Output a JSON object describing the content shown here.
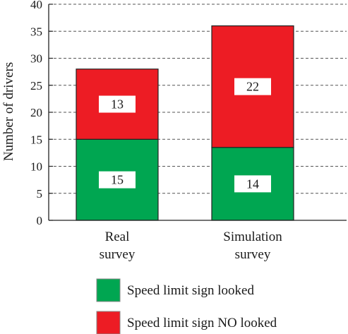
{
  "chart_data": {
    "type": "bar",
    "stacked": true,
    "categories": [
      [
        "Real",
        "survey"
      ],
      [
        "Simulation",
        "survey"
      ]
    ],
    "series": [
      {
        "name": "Speed limit sign looked",
        "values": [
          15,
          13.5
        ],
        "labels": [
          "15",
          "14"
        ],
        "color": "#00a651"
      },
      {
        "name": "Speed limit sign NO looked",
        "values": [
          13,
          22.5
        ],
        "labels": [
          "13",
          "22"
        ],
        "color": "#ed1c24"
      }
    ],
    "ylabel": "Number of drivers",
    "xlabel": "",
    "ylim": [
      0,
      40
    ],
    "yticks": [
      0,
      5,
      10,
      15,
      20,
      25,
      30,
      35,
      40
    ],
    "grid": true,
    "legend_position": "bottom"
  }
}
